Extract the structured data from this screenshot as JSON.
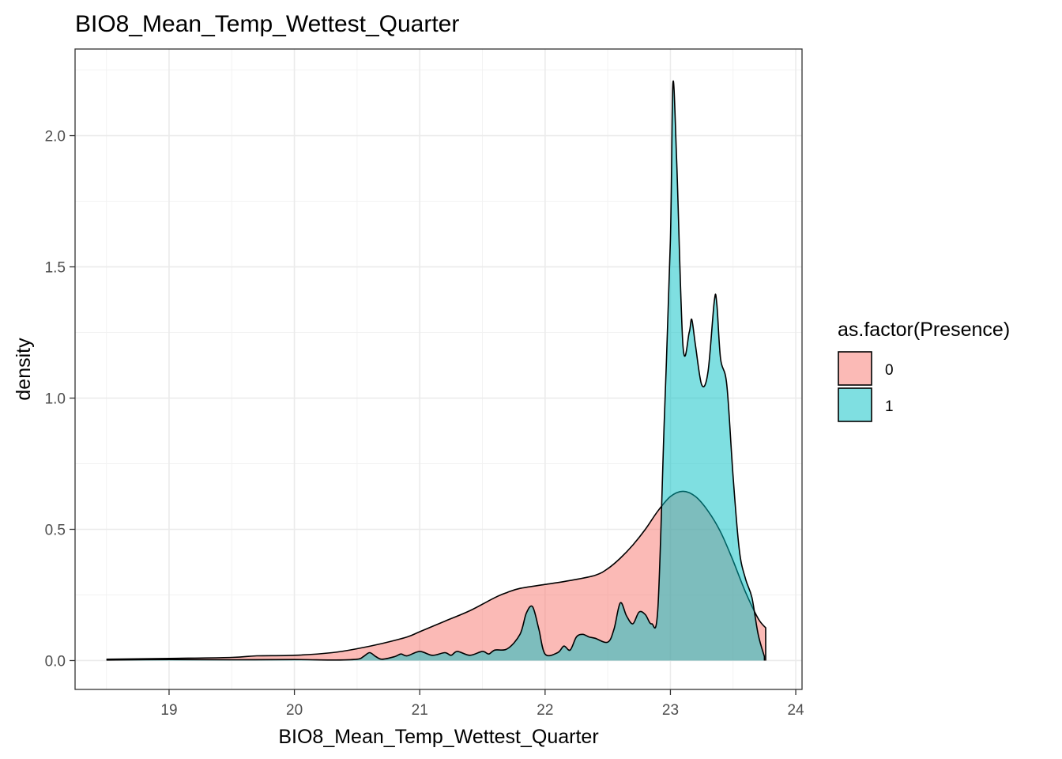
{
  "chart_data": {
    "type": "area",
    "title": "BIO8_Mean_Temp_Wettest_Quarter",
    "xlabel": "BIO8_Mean_Temp_Wettest_Quarter",
    "ylabel": "density",
    "xlim": [
      18.25,
      24.05
    ],
    "ylim": [
      -0.11,
      2.33
    ],
    "x_ticks": [
      19,
      20,
      21,
      22,
      23,
      24
    ],
    "x_tick_labels": [
      "19",
      "20",
      "21",
      "22",
      "23",
      "24"
    ],
    "y_ticks": [
      0.0,
      0.5,
      1.0,
      1.5,
      2.0
    ],
    "y_tick_labels": [
      "0.0",
      "0.5",
      "1.0",
      "1.5",
      "2.0"
    ],
    "grid": true,
    "legend": {
      "title": "as.factor(Presence)",
      "position": "right",
      "entries": [
        {
          "label": "0",
          "color": "#F8766D"
        },
        {
          "label": "1",
          "color": "#00BFC4"
        }
      ]
    },
    "series": [
      {
        "name": "0",
        "color": "#F8766D",
        "x": [
          18.5,
          19.0,
          19.5,
          19.7,
          20.0,
          20.3,
          20.5,
          20.7,
          20.9,
          21.0,
          21.2,
          21.4,
          21.6,
          21.7,
          21.8,
          22.0,
          22.2,
          22.4,
          22.5,
          22.6,
          22.7,
          22.8,
          22.9,
          23.0,
          23.1,
          23.2,
          23.3,
          23.4,
          23.5,
          23.6,
          23.7,
          23.76
        ],
        "y": [
          0.005,
          0.008,
          0.012,
          0.018,
          0.02,
          0.03,
          0.045,
          0.065,
          0.09,
          0.11,
          0.15,
          0.19,
          0.24,
          0.26,
          0.275,
          0.29,
          0.305,
          0.325,
          0.35,
          0.39,
          0.44,
          0.5,
          0.57,
          0.625,
          0.645,
          0.625,
          0.57,
          0.49,
          0.38,
          0.26,
          0.16,
          0.125
        ]
      },
      {
        "name": "1",
        "color": "#00BFC4",
        "x": [
          18.5,
          19.0,
          19.5,
          20.0,
          20.3,
          20.5,
          20.55,
          20.6,
          20.65,
          20.7,
          20.8,
          20.85,
          20.9,
          21.0,
          21.1,
          21.2,
          21.25,
          21.3,
          21.4,
          21.5,
          21.55,
          21.6,
          21.7,
          21.8,
          21.85,
          21.9,
          21.95,
          22.0,
          22.1,
          22.15,
          22.2,
          22.25,
          22.3,
          22.35,
          22.4,
          22.5,
          22.55,
          22.6,
          22.65,
          22.7,
          22.75,
          22.8,
          22.85,
          22.9,
          22.95,
          23.0,
          23.02,
          23.05,
          23.1,
          23.15,
          23.17,
          23.2,
          23.25,
          23.3,
          23.35,
          23.37,
          23.4,
          23.45,
          23.5,
          23.55,
          23.6,
          23.65,
          23.7,
          23.75
        ],
        "y": [
          0.002,
          0.004,
          0.003,
          0.004,
          0.002,
          0.005,
          0.015,
          0.03,
          0.015,
          0.005,
          0.015,
          0.025,
          0.018,
          0.035,
          0.02,
          0.03,
          0.02,
          0.035,
          0.02,
          0.035,
          0.025,
          0.04,
          0.045,
          0.1,
          0.18,
          0.205,
          0.12,
          0.025,
          0.03,
          0.055,
          0.04,
          0.09,
          0.1,
          0.09,
          0.085,
          0.07,
          0.12,
          0.22,
          0.17,
          0.14,
          0.185,
          0.175,
          0.14,
          0.2,
          0.9,
          1.6,
          2.2,
          1.9,
          1.2,
          1.25,
          1.3,
          1.2,
          1.05,
          1.1,
          1.37,
          1.36,
          1.15,
          1.05,
          0.7,
          0.42,
          0.31,
          0.24,
          0.1,
          0.015
        ]
      }
    ]
  }
}
